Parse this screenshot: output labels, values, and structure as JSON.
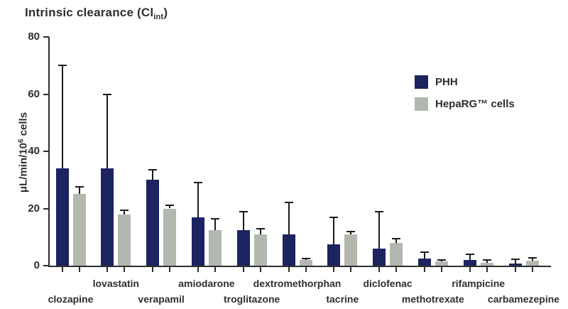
{
  "title": {
    "prefix": "Intrinsic clearance (Cl",
    "subscript": "int",
    "suffix": ")"
  },
  "y_axis": {
    "label_prefix": "μL/min/10",
    "label_sup": "6",
    "label_suffix": " cells",
    "tick_labels": [
      "0",
      "20",
      "40",
      "60",
      "80"
    ]
  },
  "legend": {
    "items": [
      {
        "label": "PHH",
        "color": "#1b2360"
      },
      {
        "label": "HepaRG™ cells",
        "color": "#b2b8ae"
      }
    ]
  },
  "colors": {
    "phh": "#1b2360",
    "heparg": "#b2b8ae",
    "text": "#2e2e2e",
    "error_bar": "#1a1a1a",
    "background": "#ffffff"
  },
  "chart_data": {
    "type": "bar",
    "title": "Intrinsic clearance (Clint)",
    "xlabel": "",
    "ylabel": "μL/min/10⁶ cells",
    "ylim": [
      0,
      80
    ],
    "yticks": [
      0,
      20,
      40,
      60,
      80
    ],
    "grid": false,
    "legend_position": "upper right",
    "error_bars": "upper only",
    "categories": [
      "clozapine",
      "lovastatin",
      "verapamil",
      "amiodarone",
      "troglitazone",
      "dextromethorphan",
      "tacrine",
      "diclofenac",
      "methotrexate",
      "rifampicine",
      "carbamezepine"
    ],
    "series": [
      {
        "name": "PHH",
        "color": "#1b2360",
        "values": [
          34,
          34,
          30,
          17,
          12.5,
          11,
          7.5,
          6,
          2.5,
          2,
          0.8
        ],
        "errors_plus": [
          36,
          26,
          3.5,
          12,
          6.5,
          11,
          9.5,
          13,
          2.3,
          2,
          1.5
        ]
      },
      {
        "name": "HepaRG™ cells",
        "color": "#b2b8ae",
        "values": [
          25,
          18,
          20,
          12.5,
          11,
          2,
          11,
          8,
          1.5,
          1,
          1.7
        ],
        "errors_plus": [
          2.5,
          1.5,
          1,
          4,
          2,
          0.5,
          1,
          1.5,
          0.5,
          1,
          1
        ]
      }
    ]
  }
}
